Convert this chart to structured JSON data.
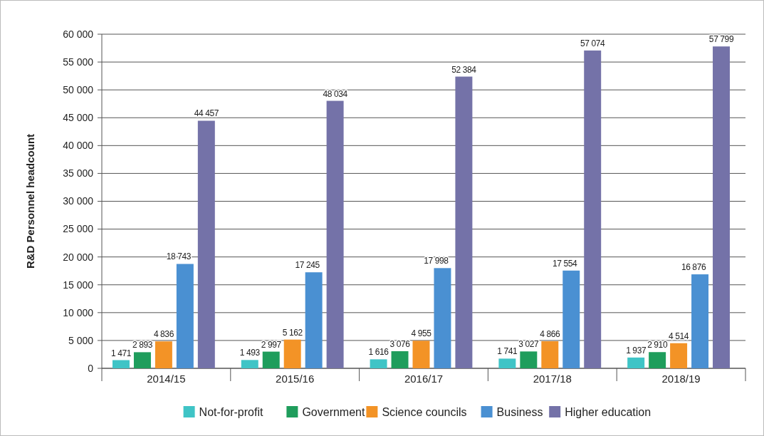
{
  "chart_data": {
    "type": "bar",
    "ylabel": "R&D Personnel headcount",
    "categories": [
      "2014/15",
      "2015/16",
      "2016/17",
      "2017/18",
      "2018/19"
    ],
    "series": [
      {
        "name": "Not-for-profit",
        "color": "#3fc4c6",
        "values": [
          1471,
          1493,
          1616,
          1741,
          1937
        ],
        "value_labels": [
          "1 471",
          "1 493",
          "1 616",
          "1 741",
          "1 937"
        ]
      },
      {
        "name": "Government",
        "color": "#1f9d5c",
        "values": [
          2893,
          2997,
          3076,
          3027,
          2910
        ],
        "value_labels": [
          "2 893",
          "2 997",
          "3 076",
          "3 027",
          "2 910"
        ]
      },
      {
        "name": "Science councils",
        "color": "#f39326",
        "values": [
          4836,
          5162,
          4955,
          4866,
          4514
        ],
        "value_labels": [
          "4 836",
          "5 162",
          "4 955",
          "4 866",
          "4 514"
        ]
      },
      {
        "name": "Business",
        "color": "#4a90d2",
        "values": [
          18743,
          17245,
          17998,
          17554,
          16876
        ],
        "value_labels": [
          "18 743",
          "17 245",
          "17 998",
          "17 554",
          "16 876"
        ]
      },
      {
        "name": "Higher education",
        "color": "#7472a8",
        "values": [
          44457,
          48034,
          52384,
          57074,
          57799
        ],
        "value_labels": [
          "44 457",
          "48 034",
          "52 384",
          "57 074",
          "57 799"
        ]
      }
    ],
    "ylim": [
      0,
      60000
    ],
    "yticks": [
      {
        "value": 0,
        "label": "0"
      },
      {
        "value": 5000,
        "label": "5 000"
      },
      {
        "value": 10000,
        "label": "10 000"
      },
      {
        "value": 15000,
        "label": "15 000"
      },
      {
        "value": 20000,
        "label": "20 000"
      },
      {
        "value": 25000,
        "label": "25 000"
      },
      {
        "value": 30000,
        "label": "30 000"
      },
      {
        "value": 35000,
        "label": "35 000"
      },
      {
        "value": 40000,
        "label": "40 000"
      },
      {
        "value": 45000,
        "label": "45 000"
      },
      {
        "value": 50000,
        "label": "50 000"
      },
      {
        "value": 55000,
        "label": "55 000"
      },
      {
        "value": 60000,
        "label": "60 000"
      }
    ],
    "grid": "y",
    "legend": "bottom"
  }
}
